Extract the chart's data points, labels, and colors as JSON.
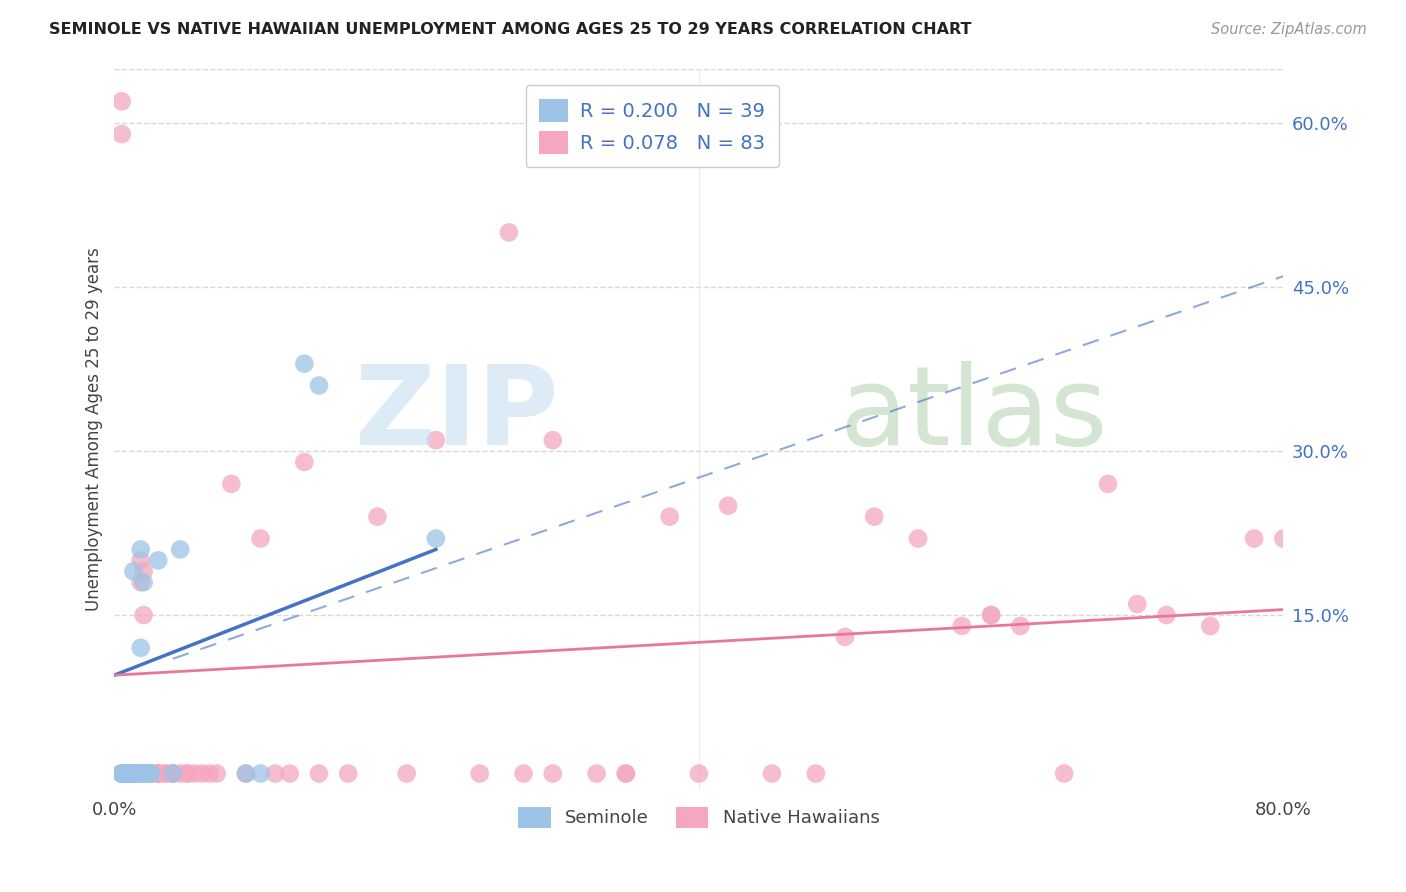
{
  "title": "SEMINOLE VS NATIVE HAWAIIAN UNEMPLOYMENT AMONG AGES 25 TO 29 YEARS CORRELATION CHART",
  "source": "Source: ZipAtlas.com",
  "ylabel": "Unemployment Among Ages 25 to 29 years",
  "xlim": [
    0.0,
    0.8
  ],
  "ylim": [
    -0.01,
    0.65
  ],
  "seminole_line_color": "#4472c4",
  "native_hawaiian_line_color": "#e8789a",
  "seminole_marker_color": "#9dc3e6",
  "native_hawaiian_marker_color": "#f4a7be",
  "background_color": "#ffffff",
  "grid_color": "#d8d8d8",
  "watermark_zip_color": "#c5dff0",
  "watermark_atlas_color": "#b8d4b8",
  "right_tick_color": "#4472c4",
  "sem_x": [
    0.005,
    0.005,
    0.005,
    0.005,
    0.007,
    0.008,
    0.008,
    0.009,
    0.01,
    0.01,
    0.01,
    0.01,
    0.01,
    0.012,
    0.012,
    0.013,
    0.013,
    0.015,
    0.015,
    0.015,
    0.015,
    0.015,
    0.017,
    0.018,
    0.018,
    0.02,
    0.02,
    0.02,
    0.022,
    0.025,
    0.025,
    0.03,
    0.04,
    0.045,
    0.09,
    0.1,
    0.13,
    0.14,
    0.22
  ],
  "sem_y": [
    0.005,
    0.005,
    0.005,
    0.005,
    0.005,
    0.005,
    0.005,
    0.005,
    0.005,
    0.005,
    0.005,
    0.005,
    0.005,
    0.005,
    0.005,
    0.19,
    0.005,
    0.005,
    0.005,
    0.005,
    0.005,
    0.005,
    0.005,
    0.12,
    0.21,
    0.005,
    0.005,
    0.18,
    0.005,
    0.005,
    0.005,
    0.2,
    0.005,
    0.21,
    0.005,
    0.005,
    0.38,
    0.36,
    0.22
  ],
  "nat_x": [
    0.005,
    0.007,
    0.008,
    0.008,
    0.01,
    0.01,
    0.01,
    0.01,
    0.01,
    0.012,
    0.013,
    0.015,
    0.015,
    0.015,
    0.015,
    0.015,
    0.018,
    0.018,
    0.018,
    0.02,
    0.02,
    0.02,
    0.025,
    0.025,
    0.025,
    0.025,
    0.03,
    0.03,
    0.03,
    0.03,
    0.035,
    0.035,
    0.04,
    0.04,
    0.04,
    0.045,
    0.05,
    0.05,
    0.055,
    0.06,
    0.065,
    0.07,
    0.08,
    0.09,
    0.1,
    0.11,
    0.12,
    0.13,
    0.14,
    0.16,
    0.18,
    0.2,
    0.22,
    0.25,
    0.28,
    0.3,
    0.33,
    0.35,
    0.38,
    0.4,
    0.42,
    0.45,
    0.48,
    0.5,
    0.52,
    0.55,
    0.58,
    0.6,
    0.62,
    0.65,
    0.68,
    0.7,
    0.72,
    0.75,
    0.78,
    0.8,
    0.3,
    0.35,
    0.6,
    0.015,
    0.005,
    0.005,
    0.27
  ],
  "nat_y": [
    0.005,
    0.005,
    0.005,
    0.005,
    0.005,
    0.005,
    0.005,
    0.005,
    0.005,
    0.005,
    0.005,
    0.005,
    0.005,
    0.005,
    0.005,
    0.005,
    0.005,
    0.18,
    0.2,
    0.005,
    0.15,
    0.19,
    0.005,
    0.005,
    0.005,
    0.005,
    0.005,
    0.005,
    0.005,
    0.005,
    0.005,
    0.005,
    0.005,
    0.005,
    0.005,
    0.005,
    0.005,
    0.005,
    0.005,
    0.005,
    0.005,
    0.005,
    0.27,
    0.005,
    0.22,
    0.005,
    0.005,
    0.29,
    0.005,
    0.005,
    0.24,
    0.005,
    0.31,
    0.005,
    0.005,
    0.005,
    0.005,
    0.005,
    0.24,
    0.005,
    0.25,
    0.005,
    0.005,
    0.13,
    0.24,
    0.22,
    0.14,
    0.15,
    0.14,
    0.005,
    0.27,
    0.16,
    0.15,
    0.14,
    0.22,
    0.22,
    0.31,
    0.005,
    0.15,
    0.005,
    0.62,
    0.59,
    0.5
  ]
}
